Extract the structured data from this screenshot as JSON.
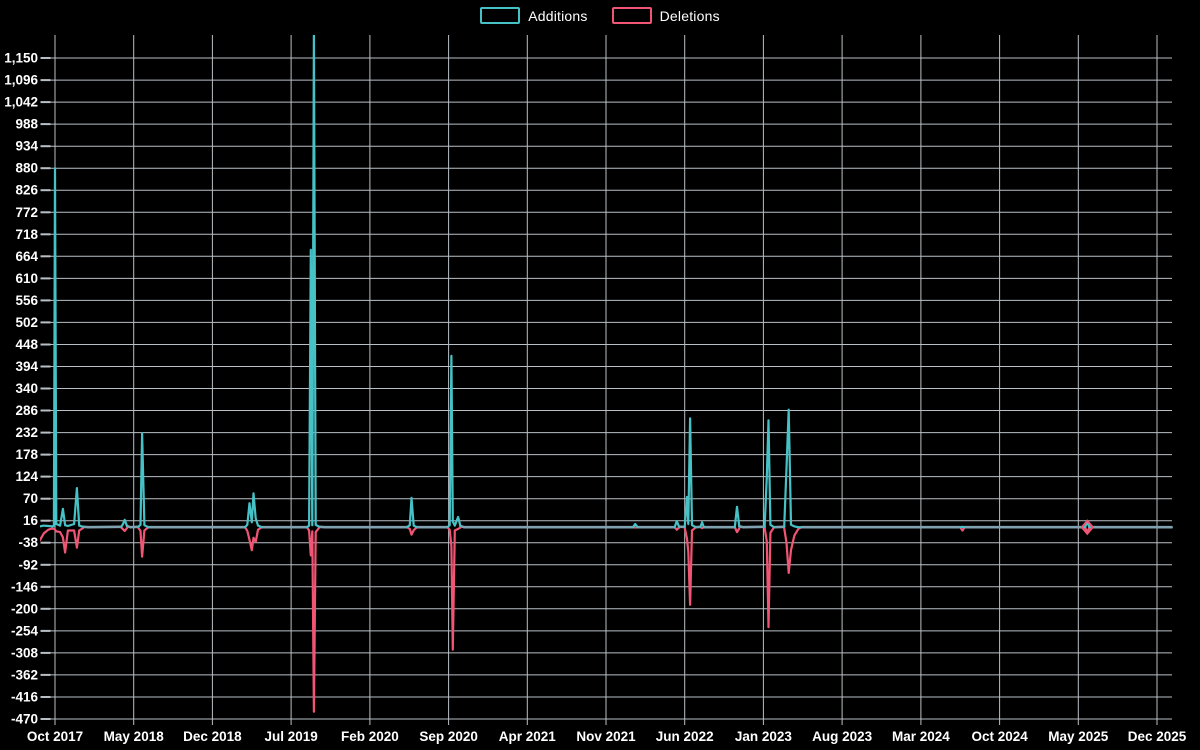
{
  "legend": {
    "items": [
      {
        "label": "Additions",
        "color": "#46c2c6"
      },
      {
        "label": "Deletions",
        "color": "#f15574"
      }
    ]
  },
  "chart_data": {
    "type": "line",
    "title": "",
    "xlabel": "",
    "ylabel": "",
    "grid": true,
    "legend_position": "top-center",
    "background": "#000000",
    "grid_color": "#b9c0c5",
    "baseline_overlap_color": "#7fa1b0",
    "x_unit": "months since Oct 2017",
    "x_range": [
      -1.35,
      99.3
    ],
    "y_range": [
      -470,
      1204
    ],
    "y_tick_step": 54,
    "y_tick_values": [
      1150,
      1096,
      1042,
      988,
      934,
      880,
      826,
      772,
      718,
      664,
      610,
      556,
      502,
      448,
      394,
      340,
      286,
      232,
      178,
      124,
      70,
      16,
      -38,
      -92,
      -146,
      -200,
      -254,
      -308,
      -362,
      -416,
      -470
    ],
    "y_tick_labels": [
      "1,150",
      "1,096",
      "1,042",
      "988",
      "934",
      "880",
      "826",
      "772",
      "718",
      "664",
      "610",
      "556",
      "502",
      "448",
      "394",
      "340",
      "286",
      "232",
      "178",
      "124",
      "70",
      "16",
      "-38",
      "-92",
      "-146",
      "-200",
      "-254",
      "-308",
      "-362",
      "-416",
      "-470"
    ],
    "x_tick_months": [
      0,
      7,
      14,
      21,
      28,
      35,
      42,
      49,
      56,
      63,
      70,
      77,
      84,
      91,
      98
    ],
    "x_tick_labels": [
      "Oct 2017",
      "May 2018",
      "Dec 2018",
      "Jul 2019",
      "Feb 2020",
      "Sep 2020",
      "Apr 2021",
      "Nov 2021",
      "Jun 2022",
      "Jan 2023",
      "Aug 2023",
      "Mar 2024",
      "Oct 2024",
      "May 2025",
      "Dec 2025"
    ],
    "x_months": [
      -1.35,
      -1.0,
      -0.6,
      -0.25,
      -0.1,
      0,
      0.12,
      0.45,
      0.7,
      0.9,
      1.15,
      1.7,
      1.95,
      2.15,
      2.5,
      3.0,
      5.9,
      6.05,
      6.2,
      6.4,
      6.7,
      7.4,
      7.6,
      7.75,
      7.95,
      8.3,
      16.9,
      17.1,
      17.3,
      17.5,
      17.65,
      17.85,
      18.05,
      18.4,
      22.4,
      22.6,
      22.75,
      22.88,
      23.02,
      23.18,
      23.5,
      24.0,
      31.3,
      31.55,
      31.7,
      31.9,
      32.2,
      34.9,
      35.1,
      35.25,
      35.38,
      35.55,
      35.85,
      36.05,
      36.4,
      51.4,
      51.6,
      51.8,
      55.1,
      55.3,
      55.5,
      56.0,
      56.2,
      56.32,
      56.48,
      56.65,
      57.0,
      57.4,
      57.55,
      57.7,
      60.45,
      60.65,
      60.85,
      61.2,
      63.1,
      63.3,
      63.45,
      63.62,
      63.95,
      64.85,
      65.05,
      65.25,
      65.45,
      65.75,
      66.1,
      66.4,
      80.5,
      80.7,
      80.9,
      91.6,
      91.8,
      92.0,
      99.3
    ],
    "series": [
      {
        "name": "Additions",
        "color": "#46c2c6",
        "values": [
          2,
          4,
          3,
          2,
          3,
          880,
          8,
          4,
          45,
          5,
          3,
          8,
          96,
          4,
          1,
          0,
          1,
          8,
          18,
          3,
          0,
          1,
          6,
          230,
          5,
          0,
          0,
          6,
          59,
          12,
          83,
          22,
          4,
          0,
          0,
          4,
          680,
          5,
          1215,
          6,
          1,
          0,
          0,
          5,
          72,
          4,
          0,
          0,
          5,
          420,
          14,
          4,
          25,
          3,
          0,
          0,
          8,
          0,
          0,
          15,
          1,
          1,
          74,
          8,
          267,
          5,
          0,
          1,
          12,
          0,
          0,
          50,
          2,
          0,
          1,
          123,
          262,
          6,
          0,
          1,
          145,
          288,
          6,
          2,
          0,
          0,
          0,
          1,
          0,
          0,
          13,
          0,
          0
        ]
      },
      {
        "name": "Deletions",
        "color": "#f15574",
        "values": [
          -32,
          -15,
          -6,
          -3,
          -4,
          -6,
          -10,
          -12,
          -25,
          -62,
          -8,
          -8,
          -50,
          -8,
          -2,
          0,
          -1,
          -5,
          -9,
          -2,
          0,
          -1,
          -9,
          -72,
          -8,
          0,
          0,
          -9,
          -31,
          -56,
          -26,
          -36,
          -6,
          0,
          0,
          -8,
          -69,
          -10,
          -452,
          -12,
          -1,
          0,
          0,
          -4,
          -18,
          -7,
          0,
          0,
          -6,
          -46,
          -300,
          -8,
          -4,
          -1,
          0,
          0,
          -1,
          0,
          0,
          -6,
          -1,
          -1,
          -28,
          -60,
          -190,
          -8,
          0,
          0,
          -2,
          0,
          0,
          -12,
          -3,
          0,
          -1,
          -35,
          -245,
          -14,
          0,
          -2,
          -38,
          -112,
          -56,
          -20,
          -4,
          0,
          0,
          -8,
          0,
          0,
          -12,
          0,
          0
        ]
      }
    ],
    "marker": {
      "series": "Deletions",
      "m": 91.8,
      "shape": "diamond"
    },
    "notes_visible": "Additions spike at Jul/Aug 2019 is clipped at the top of the plot (exceeds 1,204)"
  }
}
